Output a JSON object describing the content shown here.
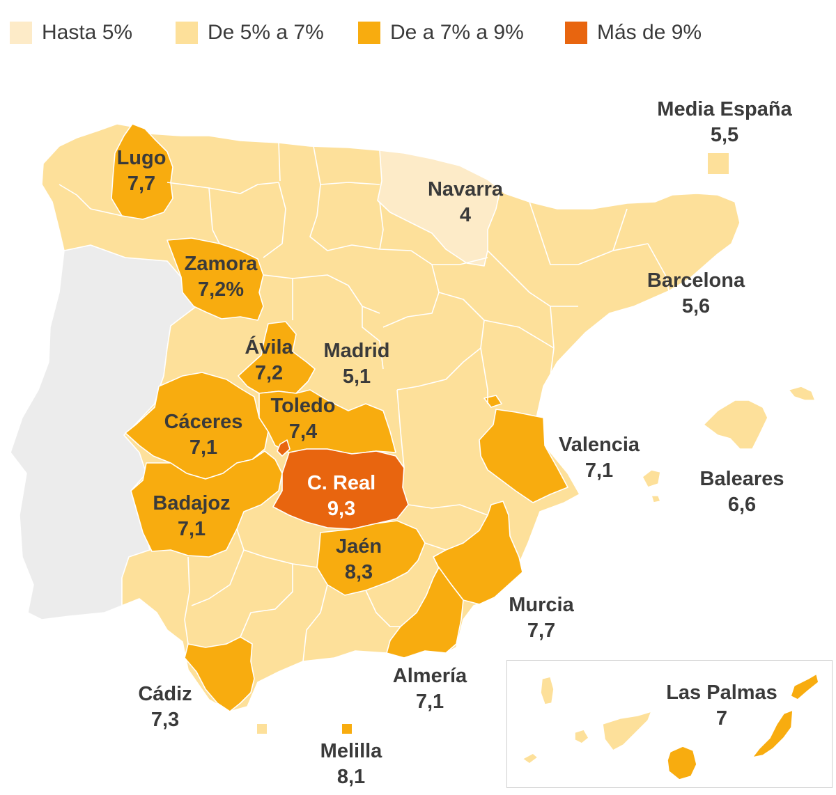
{
  "colors": {
    "hasta5": "#fdebc8",
    "de5a7": "#fde09a",
    "de7a9": "#f8ac0f",
    "mas9": "#e8650f",
    "portugal": "#ececec",
    "border": "#ffffff",
    "inset_border": "#cfcfcf",
    "text": "#3a3a3a"
  },
  "legend": [
    {
      "label": "Hasta 5%",
      "color": "#fdebc8"
    },
    {
      "label": "De 5% a 7%",
      "color": "#fde09a"
    },
    {
      "label": "De a 7% a 9%",
      "color": "#f8ac0f"
    },
    {
      "label": "Más de 9%",
      "color": "#e8650f"
    }
  ],
  "labels": {
    "media": {
      "name": "Media España",
      "value": "5,5"
    },
    "lugo": {
      "name": "Lugo",
      "value": "7,7"
    },
    "navarra": {
      "name": "Navarra",
      "value": "4"
    },
    "zamora": {
      "name": "Zamora",
      "value": "7,2%"
    },
    "barcelona": {
      "name": "Barcelona",
      "value": "5,6"
    },
    "avila": {
      "name": "Ávila",
      "value": "7,2"
    },
    "madrid": {
      "name": "Madrid",
      "value": "5,1"
    },
    "toledo": {
      "name": "Toledo",
      "value": "7,4"
    },
    "caceres": {
      "name": "Cáceres",
      "value": "7,1"
    },
    "valencia": {
      "name": "Valencia",
      "value": "7,1"
    },
    "creal": {
      "name": "C. Real",
      "value": "9,3"
    },
    "baleares": {
      "name": "Baleares",
      "value": "6,6"
    },
    "badajoz": {
      "name": "Badajoz",
      "value": "7,1"
    },
    "jaen": {
      "name": "Jaén",
      "value": "8,3"
    },
    "murcia": {
      "name": "Murcia",
      "value": "7,7"
    },
    "almeria": {
      "name": "Almería",
      "value": "7,1"
    },
    "cadiz": {
      "name": "Cádiz",
      "value": "7,3"
    },
    "melilla": {
      "name": "Melilla",
      "value": "8,1"
    },
    "laspalmas": {
      "name": "Las Palmas",
      "value": "7"
    }
  }
}
